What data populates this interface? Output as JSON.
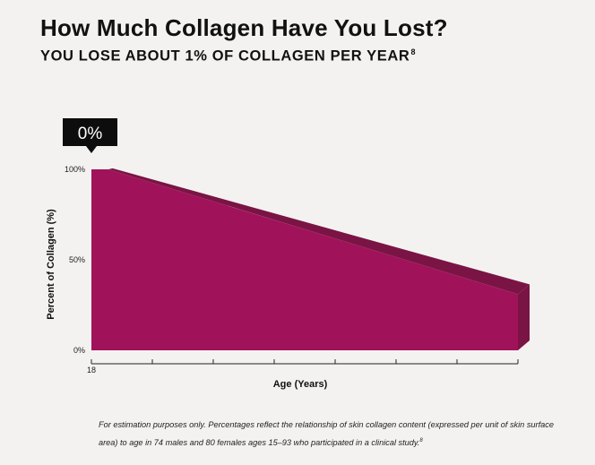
{
  "header": {
    "title": "How Much Collagen Have You Lost?",
    "subtitle": "YOU LOSE ABOUT 1% OF COLLAGEN PER YEAR",
    "subtitle_ref": "8"
  },
  "chart_data": {
    "type": "area",
    "title": "How Much Collagen Have You Lost?",
    "subtitle": "YOU LOSE ABOUT 1% OF COLLAGEN PER YEAR",
    "xlabel": "Age (Years)",
    "ylabel": "Percent of Collagen (%)",
    "x": [
      18,
      21,
      93
    ],
    "y": [
      100,
      100,
      31
    ],
    "x_tick_labels": [
      "18"
    ],
    "x_tick_count": 8,
    "y_ticks": [
      {
        "value": 0,
        "label": "0%"
      },
      {
        "value": 50,
        "label": "50%"
      },
      {
        "value": 100,
        "label": "100%"
      }
    ],
    "xlim": [
      18,
      93
    ],
    "ylim": [
      0,
      100
    ],
    "indicator": {
      "label": "0%",
      "x": 18
    },
    "fill_color": "#a0135a",
    "side_color": "#7a1444",
    "grid": false,
    "legend": "none"
  },
  "footnote": {
    "text": "For estimation purposes only. Percentages reflect the relationship of skin collagen content (expressed per unit of skin surface area) to age in 74 males and 80 females ages 15–93 who participated in a clinical study.",
    "ref": "8"
  }
}
